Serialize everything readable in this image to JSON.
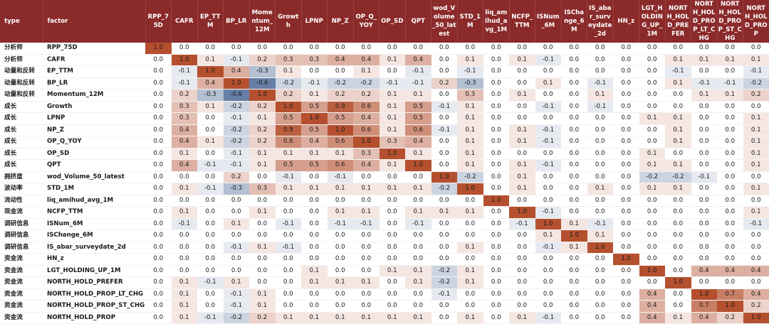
{
  "header": {
    "type_label": "type",
    "factor_label": "factor",
    "columns": [
      "RPP_75D",
      "CAFR",
      "EP_TTM",
      "BP_LR",
      "Momentum_12M",
      "Growth",
      "LPNP",
      "NP_Z",
      "OP_Q_YOY",
      "OP_SD",
      "QPT",
      "wod_Volume_50_latest",
      "STD_1M",
      "liq_amihud_avg_1M",
      "NCFP_TTM",
      "ISNum_6M",
      "ISChange_6M",
      "IS_abar_surveydate_2d",
      "HN_z",
      "LGT_HOLDING_UP_1M",
      "NORTH_HOLD_PREFER",
      "NORTH_HOLD_PROP_LT_CHG",
      "NORTH_HOLD_PROP_ST_CHG",
      "NORTH_HOLD_PROP"
    ]
  },
  "colors": {
    "header_bg": "#8b2a2a",
    "positive": "#b5502f",
    "negative": "#4a6695"
  },
  "chart_data": {
    "type": "heatmap",
    "title": "",
    "rows": [
      {
        "type": "分析师",
        "factor": "RPP_75D",
        "values": [
          1.0,
          0.0,
          0.0,
          0.0,
          0.0,
          0.0,
          0.0,
          0.0,
          0.0,
          0.0,
          0.0,
          0.0,
          0.0,
          0.0,
          0.0,
          0.0,
          0.0,
          0.0,
          0.0,
          0.0,
          0.0,
          0.0,
          0.0,
          0.0
        ]
      },
      {
        "type": "分析师",
        "factor": "CAFR",
        "values": [
          0.0,
          1.0,
          0.1,
          -0.1,
          0.2,
          0.3,
          0.3,
          0.4,
          0.4,
          0.1,
          0.4,
          0.0,
          0.1,
          0.0,
          0.1,
          -0.1,
          0.0,
          0.0,
          0.0,
          0.0,
          0.1,
          0.1,
          0.1,
          0.1
        ]
      },
      {
        "type": "动量和反转",
        "factor": "EP_TTM",
        "values": [
          0.0,
          -0.1,
          1.0,
          0.4,
          -0.3,
          0.1,
          0.0,
          0.0,
          0.1,
          0.0,
          -0.1,
          0.0,
          -0.1,
          0.0,
          0.0,
          0.0,
          0.0,
          0.0,
          0.0,
          0.0,
          -0.1,
          0.0,
          0.0,
          -0.1
        ]
      },
      {
        "type": "动量和反转",
        "factor": "BP_LR",
        "values": [
          0.0,
          -0.1,
          0.4,
          1.0,
          -0.6,
          -0.2,
          -0.1,
          -0.2,
          -0.2,
          -0.1,
          -0.1,
          0.2,
          -0.3,
          0.0,
          0.0,
          0.1,
          0.0,
          -0.1,
          0.0,
          0.0,
          0.1,
          -0.1,
          -0.1,
          -0.2
        ]
      },
      {
        "type": "动量和反转",
        "factor": "Momentum_12M",
        "values": [
          0.0,
          0.2,
          -0.3,
          -0.6,
          1.0,
          0.2,
          0.1,
          0.2,
          0.2,
          0.1,
          0.1,
          0.0,
          0.3,
          0.0,
          0.1,
          0.0,
          0.0,
          0.1,
          0.0,
          0.0,
          0.0,
          0.1,
          0.1,
          0.2
        ]
      },
      {
        "type": "成长",
        "factor": "Growth",
        "values": [
          0.0,
          0.3,
          0.1,
          -0.2,
          0.2,
          1.0,
          0.5,
          0.9,
          0.6,
          0.1,
          0.5,
          -0.1,
          0.1,
          0.0,
          0.0,
          -0.1,
          0.0,
          -0.1,
          0.0,
          0.0,
          0.0,
          0.0,
          0.0,
          0.0
        ]
      },
      {
        "type": "成长",
        "factor": "LPNP",
        "values": [
          0.0,
          0.3,
          0.0,
          -0.1,
          0.1,
          0.5,
          1.0,
          0.5,
          0.4,
          0.1,
          0.5,
          0.0,
          0.1,
          0.0,
          0.0,
          0.0,
          0.0,
          0.0,
          0.0,
          0.1,
          0.1,
          0.0,
          0.0,
          0.1
        ]
      },
      {
        "type": "成长",
        "factor": "NP_Z",
        "values": [
          0.0,
          0.4,
          0.0,
          -0.2,
          0.2,
          0.9,
          0.5,
          1.0,
          0.6,
          0.1,
          0.6,
          -0.1,
          0.1,
          0.0,
          0.1,
          -0.1,
          0.0,
          0.0,
          0.0,
          0.0,
          0.1,
          0.0,
          0.0,
          0.1
        ]
      },
      {
        "type": "成长",
        "factor": "OP_Q_YOY",
        "values": [
          0.0,
          0.4,
          0.1,
          -0.2,
          0.2,
          0.6,
          0.4,
          0.6,
          1.0,
          0.3,
          0.4,
          0.0,
          0.1,
          0.0,
          0.1,
          -0.1,
          0.0,
          0.0,
          0.0,
          0.0,
          0.1,
          0.0,
          0.0,
          0.1
        ]
      },
      {
        "type": "成长",
        "factor": "OP_SD",
        "values": [
          0.0,
          0.1,
          0.0,
          -0.1,
          0.1,
          0.1,
          0.1,
          0.1,
          0.3,
          1.0,
          0.1,
          0.0,
          0.1,
          0.0,
          0.0,
          0.0,
          0.0,
          0.0,
          0.0,
          0.1,
          0.0,
          0.0,
          0.0,
          0.1
        ]
      },
      {
        "type": "成长",
        "factor": "QPT",
        "values": [
          0.0,
          0.4,
          -0.1,
          -0.1,
          0.1,
          0.5,
          0.5,
          0.6,
          0.4,
          0.1,
          1.0,
          0.0,
          0.1,
          0.0,
          0.1,
          -0.1,
          0.0,
          0.0,
          0.0,
          0.1,
          0.1,
          0.0,
          0.0,
          0.1
        ]
      },
      {
        "type": "拥挤度",
        "factor": "wod_Volume_50_latest",
        "values": [
          0.0,
          0.0,
          0.0,
          0.2,
          0.0,
          -0.1,
          0.0,
          -0.1,
          0.0,
          0.0,
          0.0,
          1.0,
          -0.2,
          0.0,
          0.1,
          0.0,
          0.0,
          0.0,
          0.0,
          -0.2,
          -0.2,
          -0.1,
          0.0,
          0.0
        ]
      },
      {
        "type": "波动率",
        "factor": "STD_1M",
        "values": [
          0.0,
          0.1,
          -0.1,
          -0.3,
          0.3,
          0.1,
          0.1,
          0.1,
          0.1,
          0.1,
          0.1,
          -0.2,
          1.0,
          0.0,
          0.1,
          0.0,
          0.0,
          0.1,
          0.0,
          0.1,
          0.1,
          0.0,
          0.0,
          0.1
        ]
      },
      {
        "type": "流动性",
        "factor": "liq_amihud_avg_1M",
        "values": [
          0.0,
          0.0,
          0.0,
          0.0,
          0.0,
          0.0,
          0.0,
          0.0,
          0.0,
          0.0,
          0.0,
          0.0,
          0.0,
          1.0,
          0.0,
          0.0,
          0.0,
          0.0,
          0.0,
          0.0,
          0.0,
          0.0,
          0.0,
          0.0
        ]
      },
      {
        "type": "现金流",
        "factor": "NCFP_TTM",
        "values": [
          0.0,
          0.1,
          0.0,
          0.0,
          0.1,
          0.0,
          0.0,
          0.1,
          0.1,
          0.0,
          0.1,
          0.1,
          0.1,
          0.0,
          1.0,
          -0.1,
          0.0,
          0.0,
          0.0,
          0.0,
          0.0,
          0.0,
          0.0,
          0.1
        ]
      },
      {
        "type": "调研信息",
        "factor": "ISNum_6M",
        "values": [
          0.0,
          -0.1,
          0.0,
          0.1,
          0.0,
          -0.1,
          0.0,
          -0.1,
          -0.1,
          0.0,
          -0.1,
          0.0,
          0.0,
          0.0,
          -0.1,
          1.0,
          0.1,
          -0.1,
          0.0,
          0.0,
          0.0,
          0.0,
          0.0,
          -0.1
        ]
      },
      {
        "type": "调研信息",
        "factor": "ISChange_6M",
        "values": [
          0.0,
          0.0,
          0.0,
          0.0,
          0.0,
          0.0,
          0.0,
          0.0,
          0.0,
          0.0,
          0.0,
          0.0,
          0.0,
          0.0,
          0.0,
          0.1,
          1.0,
          0.1,
          0.0,
          0.0,
          0.0,
          0.0,
          0.0,
          0.0
        ]
      },
      {
        "type": "调研信息",
        "factor": "IS_abar_surveydate_2d",
        "values": [
          0.0,
          0.0,
          0.0,
          -0.1,
          0.1,
          -0.1,
          0.0,
          0.0,
          0.0,
          0.0,
          0.0,
          0.0,
          0.1,
          0.0,
          0.0,
          -0.1,
          0.1,
          1.0,
          0.0,
          0.0,
          0.0,
          0.0,
          0.0,
          0.0
        ]
      },
      {
        "type": "资金流",
        "factor": "HN_z",
        "values": [
          0.0,
          0.0,
          0.0,
          0.0,
          0.0,
          0.0,
          0.0,
          0.0,
          0.0,
          0.0,
          0.0,
          0.0,
          0.0,
          0.0,
          0.0,
          0.0,
          0.0,
          0.0,
          1.0,
          0.0,
          0.0,
          0.0,
          0.0,
          0.0
        ]
      },
      {
        "type": "资金流",
        "factor": "LGT_HOLDING_UP_1M",
        "values": [
          0.0,
          0.0,
          0.0,
          0.0,
          0.0,
          0.0,
          0.1,
          0.0,
          0.0,
          0.1,
          0.1,
          -0.2,
          0.1,
          0.0,
          0.0,
          0.0,
          0.0,
          0.0,
          0.0,
          1.0,
          0.0,
          0.4,
          0.4,
          0.4
        ]
      },
      {
        "type": "资金流",
        "factor": "NORTH_HOLD_PREFER",
        "values": [
          0.0,
          0.1,
          -0.1,
          0.1,
          0.0,
          0.0,
          0.1,
          0.1,
          0.1,
          0.0,
          0.1,
          -0.2,
          0.1,
          0.0,
          0.0,
          0.0,
          0.0,
          0.0,
          0.0,
          0.0,
          1.0,
          0.0,
          0.0,
          0.0
        ]
      },
      {
        "type": "资金流",
        "factor": "NORTH_HOLD_PROP_LT_CHG",
        "values": [
          0.0,
          0.1,
          0.0,
          -0.1,
          0.1,
          0.0,
          0.0,
          0.0,
          0.0,
          0.0,
          0.0,
          -0.1,
          0.0,
          0.0,
          0.0,
          0.0,
          0.0,
          0.0,
          0.0,
          0.4,
          0.0,
          1.0,
          0.7,
          0.4
        ]
      },
      {
        "type": "资金流",
        "factor": "NORTH_HOLD_PROP_ST_CHG",
        "values": [
          0.0,
          0.1,
          0.0,
          -0.1,
          0.1,
          0.0,
          0.0,
          0.0,
          0.0,
          0.0,
          0.0,
          0.0,
          0.0,
          0.0,
          0.0,
          0.0,
          0.0,
          0.0,
          0.0,
          0.4,
          0.0,
          0.7,
          1.0,
          0.2
        ]
      },
      {
        "type": "资金流",
        "factor": "NORTH_HOLD_PROP",
        "values": [
          0.0,
          0.1,
          -0.1,
          -0.2,
          0.2,
          0.1,
          0.1,
          0.1,
          0.1,
          0.1,
          0.1,
          0.0,
          0.1,
          0.0,
          0.1,
          -0.1,
          0.0,
          0.0,
          0.0,
          0.4,
          0.1,
          0.4,
          0.2,
          1.0
        ]
      }
    ]
  }
}
